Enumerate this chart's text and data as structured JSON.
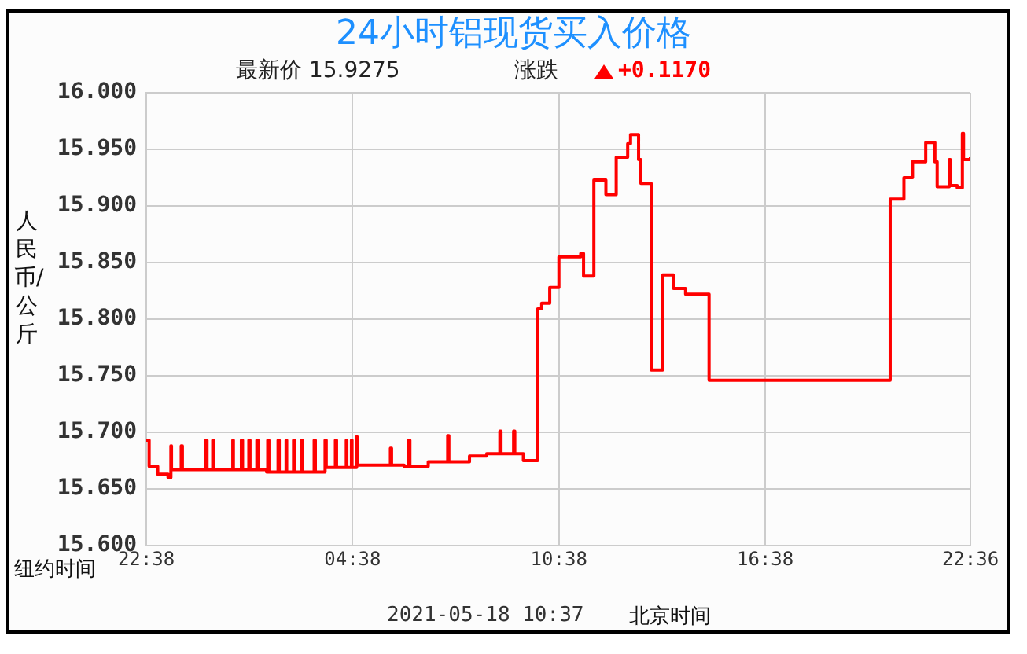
{
  "chart_data": {
    "type": "step",
    "title": "24小时铝现货买入价格",
    "subtitle": "最新价  15.9275",
    "ylabel": "人民币/公斤",
    "xlabel": "纽约时间",
    "annotations": [
      "涨跌",
      "+0.1170",
      "2021-05-18 10:37",
      "北京时间"
    ],
    "xlim": [
      "2021-05-16T22:38",
      "2021-05-17T22:36"
    ],
    "xticks": [
      {
        "value": "2021-05-16T22:38",
        "label": "22:38"
      },
      {
        "value": "2021-05-17T04:38",
        "label": "04:38"
      },
      {
        "value": "2021-05-17T10:38",
        "label": "10:38"
      },
      {
        "value": "2021-05-17T16:38",
        "label": "16:38"
      },
      {
        "value": "2021-05-17T22:36",
        "label": "22:36"
      }
    ],
    "ylim": [
      15.6,
      16.0
    ],
    "yticks": [
      {
        "value": 15.6,
        "label": "15.600"
      },
      {
        "value": 15.65,
        "label": "15.650"
      },
      {
        "value": 15.7,
        "label": "15.700"
      },
      {
        "value": 15.75,
        "label": "15.750"
      },
      {
        "value": 15.8,
        "label": "15.800"
      },
      {
        "value": 15.85,
        "label": "15.850"
      },
      {
        "value": 15.9,
        "label": "15.900"
      },
      {
        "value": 15.95,
        "label": "15.950"
      },
      {
        "value": 16.0,
        "label": "16.000"
      }
    ],
    "grid": true,
    "legend": false,
    "marker": "none",
    "series": [
      {
        "color": "#ff0000",
        "x": [
          "2021-05-16T22:38",
          "2021-05-16T22:43",
          "2021-05-16T22:58",
          "2021-05-16T23:16",
          "2021-05-16T23:21",
          "2021-05-16T23:22",
          "2021-05-16T23:39",
          "2021-05-16T23:41",
          "2021-05-17T00:22",
          "2021-05-17T00:24",
          "2021-05-17T00:34",
          "2021-05-17T00:36",
          "2021-05-17T01:09",
          "2021-05-17T01:10",
          "2021-05-17T01:24",
          "2021-05-17T01:26",
          "2021-05-17T01:37",
          "2021-05-17T01:39",
          "2021-05-17T01:51",
          "2021-05-17T01:53",
          "2021-05-17T02:08",
          "2021-05-17T02:10",
          "2021-05-17T02:12",
          "2021-05-17T02:28",
          "2021-05-17T02:30",
          "2021-05-17T02:42",
          "2021-05-17T02:43",
          "2021-05-17T02:55",
          "2021-05-17T02:57",
          "2021-05-17T03:09",
          "2021-05-17T03:10",
          "2021-05-17T03:31",
          "2021-05-17T03:33",
          "2021-05-17T03:50",
          "2021-05-17T03:52",
          "2021-05-17T04:08",
          "2021-05-17T04:10",
          "2021-05-17T04:27",
          "2021-05-17T04:28",
          "2021-05-17T04:36",
          "2021-05-17T04:37",
          "2021-05-17T04:45",
          "2021-05-17T04:46",
          "2021-05-17T05:44",
          "2021-05-17T05:46",
          "2021-05-17T06:08",
          "2021-05-17T06:16",
          "2021-05-17T06:18",
          "2021-05-17T06:50",
          "2021-05-17T07:24",
          "2021-05-17T07:26",
          "2021-05-17T08:02",
          "2021-05-17T08:32",
          "2021-05-17T08:55",
          "2021-05-17T08:57",
          "2021-05-17T09:19",
          "2021-05-17T09:21",
          "2021-05-17T09:36",
          "2021-05-17T10:01",
          "2021-05-17T10:08",
          "2021-05-17T10:22",
          "2021-05-17T10:38",
          "2021-05-17T11:16",
          "2021-05-17T11:21",
          "2021-05-17T11:39",
          "2021-05-17T12:00",
          "2021-05-17T12:18",
          "2021-05-17T12:38",
          "2021-05-17T12:43",
          "2021-05-17T12:57",
          "2021-05-17T13:01",
          "2021-05-17T13:19",
          "2021-05-17T13:39",
          "2021-05-17T13:58",
          "2021-05-17T14:19",
          "2021-05-17T15:00",
          "2021-05-17T20:16",
          "2021-05-17T20:40",
          "2021-05-17T20:55",
          "2021-05-17T21:18",
          "2021-05-17T21:34",
          "2021-05-17T21:38",
          "2021-05-17T21:59",
          "2021-05-17T22:01",
          "2021-05-17T22:13",
          "2021-05-17T22:22",
          "2021-05-17T22:24",
          "2021-05-17T22:27",
          "2021-05-17T22:36"
        ],
        "values": [
          15.693,
          15.67,
          15.663,
          15.66,
          15.688,
          15.667,
          15.688,
          15.667,
          15.693,
          15.667,
          15.693,
          15.667,
          15.693,
          15.667,
          15.693,
          15.667,
          15.693,
          15.667,
          15.693,
          15.667,
          15.665,
          15.693,
          15.665,
          15.693,
          15.665,
          15.693,
          15.665,
          15.693,
          15.665,
          15.693,
          15.665,
          15.693,
          15.665,
          15.693,
          15.669,
          15.693,
          15.669,
          15.693,
          15.669,
          15.693,
          15.669,
          15.696,
          15.671,
          15.686,
          15.671,
          15.67,
          15.693,
          15.67,
          15.674,
          15.697,
          15.674,
          15.679,
          15.681,
          15.701,
          15.681,
          15.701,
          15.681,
          15.675,
          15.809,
          15.814,
          15.828,
          15.855,
          15.858,
          15.838,
          15.923,
          15.91,
          15.943,
          15.955,
          15.963,
          15.941,
          15.92,
          15.755,
          15.839,
          15.827,
          15.822,
          15.746,
          15.906,
          15.925,
          15.939,
          15.956,
          15.939,
          15.917,
          15.941,
          15.918,
          15.916,
          15.964,
          15.941,
          15.941,
          15.943
        ]
      }
    ]
  }
}
